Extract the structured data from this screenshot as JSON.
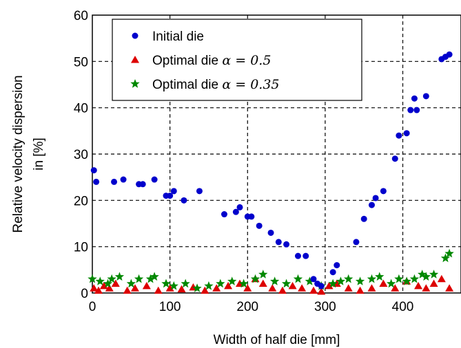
{
  "chart_data": {
    "type": "scatter",
    "xlabel": "Width of half die [mm]",
    "ylabel": [
      "Relative velocity dispersion",
      "in [%]"
    ],
    "xlim": [
      0,
      475
    ],
    "ylim": [
      0,
      60
    ],
    "xticks": [
      0,
      100,
      200,
      300,
      400
    ],
    "yticks": [
      0,
      10,
      20,
      30,
      40,
      50,
      60
    ],
    "grid": "dashed",
    "legend_position": "top-left",
    "series": [
      {
        "name_prefix": "Initial die",
        "name_math": "",
        "marker": "circle",
        "color": "#0000cc",
        "x": [
          2,
          5,
          28,
          40,
          60,
          65,
          80,
          95,
          100,
          105,
          118,
          138,
          170,
          185,
          190,
          200,
          205,
          215,
          230,
          240,
          250,
          265,
          275,
          285,
          290,
          295,
          310,
          315,
          340,
          350,
          360,
          365,
          375,
          390,
          395,
          405,
          410,
          415,
          418,
          430,
          450,
          455,
          460
        ],
        "y": [
          26.5,
          24,
          24,
          24.5,
          23.5,
          23.5,
          24.5,
          21,
          21,
          22,
          20,
          22,
          17,
          17.5,
          18.5,
          16.5,
          16.5,
          14.5,
          13,
          11,
          10.5,
          8,
          8,
          3,
          2,
          1.5,
          4.5,
          6,
          11,
          16,
          19,
          20.5,
          22,
          29,
          34,
          34.5,
          39.5,
          42,
          39.5,
          42.5,
          50.5,
          51,
          51.5
        ]
      },
      {
        "name_prefix": "Optimal die ",
        "name_math": "α = 0.5",
        "marker": "triangle",
        "color": "#dd0000",
        "x": [
          2,
          8,
          15,
          22,
          30,
          45,
          55,
          70,
          85,
          100,
          115,
          130,
          145,
          160,
          175,
          190,
          200,
          210,
          220,
          232,
          245,
          258,
          270,
          285,
          295,
          305,
          315,
          330,
          345,
          360,
          375,
          390,
          405,
          420,
          430,
          440,
          450,
          460
        ],
        "y": [
          1,
          0.5,
          1.5,
          1,
          2,
          0.5,
          1,
          1.5,
          0.5,
          1,
          0.8,
          1.2,
          0.5,
          1,
          1.5,
          2,
          1,
          3,
          2,
          1,
          0.5,
          1.5,
          1,
          0.5,
          0.3,
          1.5,
          2,
          1,
          0.5,
          1,
          2,
          1,
          2.5,
          1.5,
          1,
          2,
          3,
          1
        ]
      },
      {
        "name_prefix": "Optimal die ",
        "name_math": "α = 0.35",
        "marker": "star",
        "color": "#008800",
        "x": [
          0,
          10,
          20,
          25,
          35,
          50,
          60,
          75,
          80,
          95,
          105,
          120,
          135,
          150,
          165,
          180,
          195,
          210,
          220,
          235,
          250,
          265,
          280,
          295,
          310,
          320,
          330,
          345,
          360,
          370,
          385,
          395,
          405,
          415,
          425,
          430,
          440,
          455,
          460
        ],
        "y": [
          3,
          2.5,
          2,
          3,
          3.5,
          2,
          3,
          3,
          3.5,
          2,
          1.5,
          2,
          1,
          1.5,
          2,
          2.5,
          2,
          3,
          4,
          2.5,
          2,
          3,
          2.5,
          1.5,
          2,
          2.5,
          3,
          2.5,
          3,
          3.5,
          2,
          3,
          2.5,
          3,
          4,
          3.5,
          4,
          7.5,
          8.5
        ]
      }
    ]
  }
}
